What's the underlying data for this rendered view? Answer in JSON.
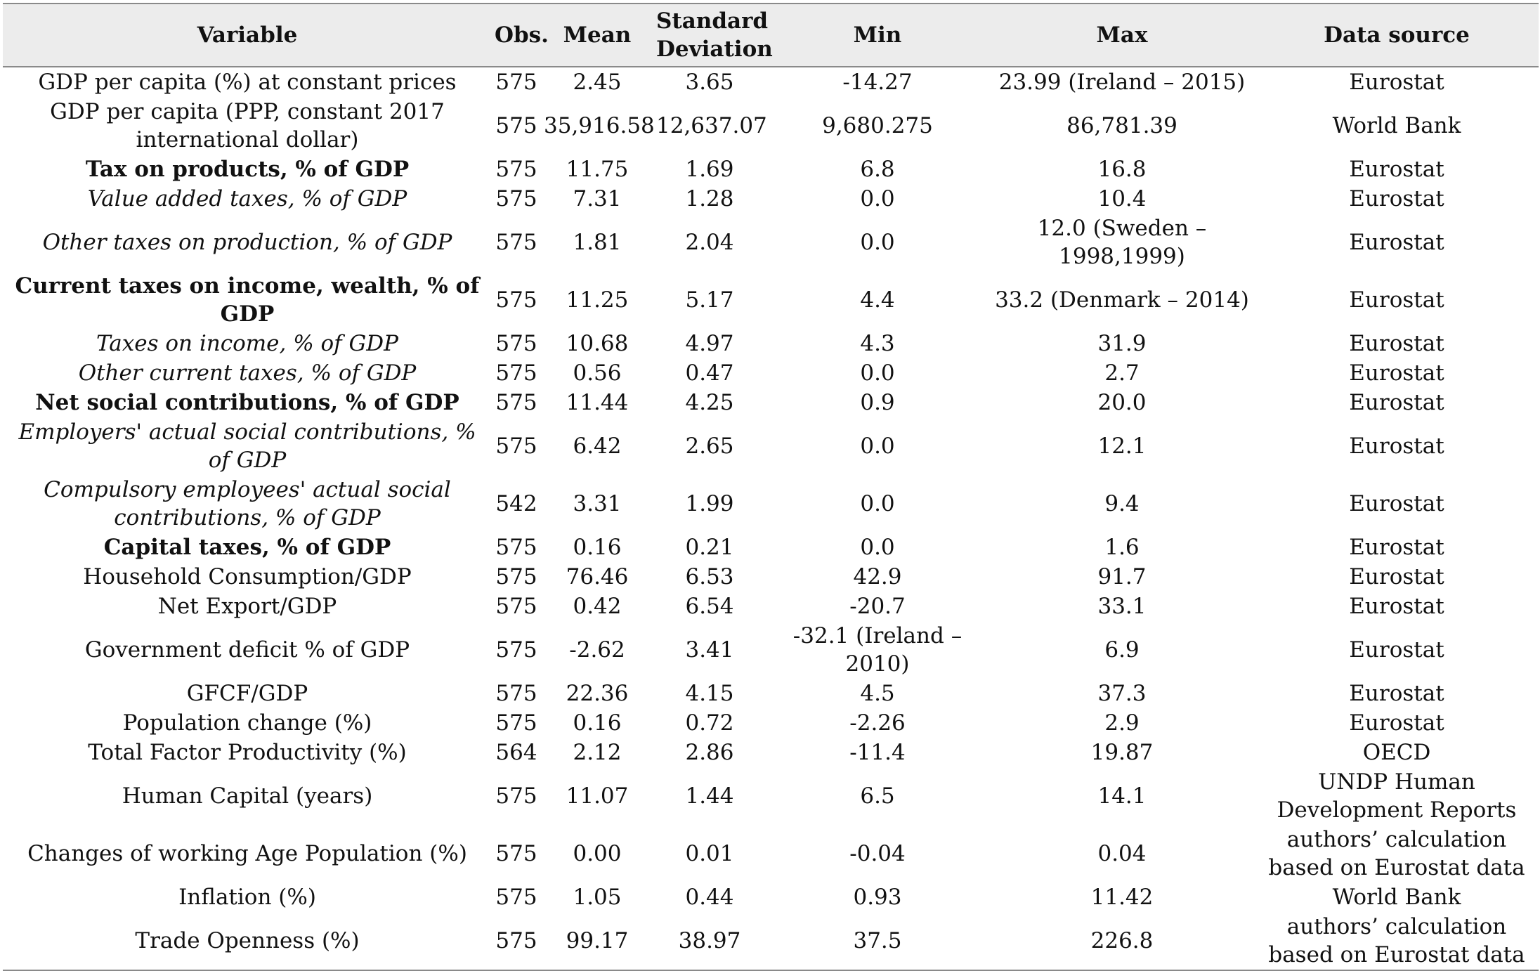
{
  "headers": {
    "variable": "Variable",
    "obs": "Obs.",
    "mean": "Mean",
    "sd": "Standard Deviation",
    "min": "Min",
    "max": "Max",
    "source": "Data source"
  },
  "rows": [
    {
      "variable": "GDP per capita (%) at constant prices",
      "style": "normal",
      "obs": "575",
      "mean": "2.45",
      "sd": "3.65",
      "min": "-14.27",
      "max": "23.99 (Ireland – 2015)",
      "source": "Eurostat"
    },
    {
      "variable": "GDP per capita (PPP, constant 2017 international dollar)",
      "style": "normal",
      "obs": "575",
      "mean": "35,916.58",
      "sd": "12,637.07",
      "min": "9,680.275",
      "max": "86,781.39",
      "source": "World Bank"
    },
    {
      "variable": "Tax on products, % of GDP",
      "style": "bold",
      "obs": "575",
      "mean": "11.75",
      "sd": "1.69",
      "min": "6.8",
      "max": "16.8",
      "source": "Eurostat"
    },
    {
      "variable": "Value added taxes, % of GDP",
      "style": "italic",
      "obs": "575",
      "mean": "7.31",
      "sd": "1.28",
      "min": "0.0",
      "max": "10.4",
      "source": "Eurostat"
    },
    {
      "variable": "Other taxes on production, % of GDP",
      "style": "italic",
      "obs": "575",
      "mean": "1.81",
      "sd": "2.04",
      "min": "0.0",
      "max": "12.0 (Sweden – 1998,1999)",
      "source": "Eurostat"
    },
    {
      "variable": "Current taxes on income, wealth, % of GDP",
      "style": "bold",
      "obs": "575",
      "mean": "11.25",
      "sd": "5.17",
      "min": "4.4",
      "max": "33.2 (Denmark – 2014)",
      "source": "Eurostat"
    },
    {
      "variable": "Taxes on income, % of GDP",
      "style": "italic",
      "obs": "575",
      "mean": "10.68",
      "sd": "4.97",
      "min": "4.3",
      "max": "31.9",
      "source": "Eurostat"
    },
    {
      "variable": "Other current taxes, % of GDP",
      "style": "italic",
      "obs": "575",
      "mean": "0.56",
      "sd": "0.47",
      "min": "0.0",
      "max": "2.7",
      "source": "Eurostat"
    },
    {
      "variable": "Net social contributions, % of GDP",
      "style": "bold",
      "obs": "575",
      "mean": "11.44",
      "sd": "4.25",
      "min": "0.9",
      "max": "20.0",
      "source": "Eurostat"
    },
    {
      "variable": "Employers' actual social contributions, % of GDP",
      "style": "italic",
      "obs": "575",
      "mean": "6.42",
      "sd": "2.65",
      "min": "0.0",
      "max": "12.1",
      "source": "Eurostat"
    },
    {
      "variable": "Compulsory employees' actual social contributions, % of GDP",
      "style": "italic",
      "obs": "542",
      "mean": "3.31",
      "sd": "1.99",
      "min": "0.0",
      "max": "9.4",
      "source": "Eurostat"
    },
    {
      "variable": "Capital taxes, % of GDP",
      "style": "bold",
      "obs": "575",
      "mean": "0.16",
      "sd": "0.21",
      "min": "0.0",
      "max": "1.6",
      "source": "Eurostat"
    },
    {
      "variable": "Household Consumption/GDP",
      "style": "normal",
      "obs": "575",
      "mean": "76.46",
      "sd": "6.53",
      "min": "42.9",
      "max": "91.7",
      "source": "Eurostat"
    },
    {
      "variable": "Net Export/GDP",
      "style": "normal",
      "obs": "575",
      "mean": "0.42",
      "sd": "6.54",
      "min": "-20.7",
      "max": "33.1",
      "source": "Eurostat"
    },
    {
      "variable": "Government deficit % of GDP",
      "style": "normal",
      "obs": "575",
      "mean": "-2.62",
      "sd": "3.41",
      "min": "-32.1 (Ireland – 2010)",
      "max": "6.9",
      "source": "Eurostat"
    },
    {
      "variable": "GFCF/GDP",
      "style": "normal",
      "obs": "575",
      "mean": "22.36",
      "sd": "4.15",
      "min": "4.5",
      "max": "37.3",
      "source": "Eurostat"
    },
    {
      "variable": "Population change (%)",
      "style": "normal",
      "obs": "575",
      "mean": "0.16",
      "sd": "0.72",
      "min": "-2.26",
      "max": "2.9",
      "source": "Eurostat"
    },
    {
      "variable": "Total Factor Productivity (%)",
      "style": "normal",
      "obs": "564",
      "mean": "2.12",
      "sd": "2.86",
      "min": "-11.4",
      "max": "19.87",
      "source": "OECD"
    },
    {
      "variable": "Human Capital (years)",
      "style": "normal",
      "obs": "575",
      "mean": "11.07",
      "sd": "1.44",
      "min": "6.5",
      "max": "14.1",
      "source": "UNDP Human Development Reports"
    },
    {
      "variable": "Changes of working Age Population (%)",
      "style": "normal",
      "obs": "575",
      "mean": "0.00",
      "sd": "0.01",
      "min": "-0.04",
      "max": "0.04",
      "source": "authors’ calculation based on Eurostat data"
    },
    {
      "variable": "Inflation (%)",
      "style": "normal",
      "obs": "575",
      "mean": "1.05",
      "sd": "0.44",
      "min": "0.93",
      "max": "11.42",
      "source": "World Bank"
    },
    {
      "variable": "Trade Openness (%)",
      "style": "normal",
      "obs": "575",
      "mean": "99.17",
      "sd": "38.97",
      "min": "37.5",
      "max": "226.8",
      "source": "authors’ calculation based on Eurostat data"
    }
  ]
}
